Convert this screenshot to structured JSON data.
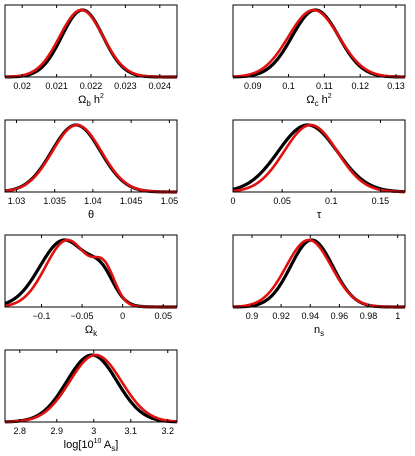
{
  "chart_data": [
    {
      "type": "line",
      "xlabel_main": "Ω",
      "xlabel_sub": "b",
      "xlabel_rest": " h",
      "xlabel_sup": "2",
      "xlim": [
        0.0195,
        0.0245
      ],
      "ticks": [
        0.02,
        0.021,
        0.022,
        0.023,
        0.024
      ],
      "tick_labels": [
        "0.02",
        "0.021",
        "0.022",
        "0.023",
        "0.024"
      ],
      "series": [
        {
          "color": "#000000",
          "mean": 0.02175,
          "sd": 0.0006,
          "bump_a": 0,
          "bump_mu": 0,
          "bump_sd": 1
        },
        {
          "color": "#e01010",
          "mean": 0.02172,
          "sd": 0.00063,
          "bump_a": 0,
          "bump_mu": 0,
          "bump_sd": 1
        }
      ]
    },
    {
      "type": "line",
      "xlabel_main": "Ω",
      "xlabel_sub": "c",
      "xlabel_rest": " h",
      "xlabel_sup": "2",
      "xlim": [
        0.0845,
        0.1325
      ],
      "ticks": [
        0.09,
        0.1,
        0.11,
        0.12,
        0.13
      ],
      "tick_labels": [
        "0.09",
        "0.1",
        "0.11",
        "0.12",
        "0.13"
      ],
      "series": [
        {
          "color": "#000000",
          "mean": 0.1075,
          "sd": 0.0065,
          "bump_a": 0,
          "bump_mu": 0,
          "bump_sd": 1
        },
        {
          "color": "#e01010",
          "mean": 0.107,
          "sd": 0.007,
          "bump_a": 0,
          "bump_mu": 0,
          "bump_sd": 1
        }
      ]
    },
    {
      "type": "line",
      "xlabel_main": "θ",
      "xlabel_sub": "",
      "xlabel_rest": "",
      "xlabel_sup": "",
      "xlim": [
        1.0285,
        1.051
      ],
      "ticks": [
        1.03,
        1.035,
        1.04,
        1.045,
        1.05
      ],
      "tick_labels": [
        "1.03",
        "1.035",
        "1.04",
        "1.045",
        "1.05"
      ],
      "series": [
        {
          "color": "#000000",
          "mean": 1.0378,
          "sd": 0.0032,
          "bump_a": 0,
          "bump_mu": 0,
          "bump_sd": 1
        },
        {
          "color": "#e01010",
          "mean": 1.0379,
          "sd": 0.0032,
          "bump_a": 0,
          "bump_mu": 0,
          "bump_sd": 1
        }
      ]
    },
    {
      "type": "line",
      "xlabel_main": "τ",
      "xlabel_sub": "",
      "xlabel_rest": "",
      "xlabel_sup": "",
      "xlim": [
        0,
        0.175
      ],
      "ticks": [
        0,
        0.05,
        0.1,
        0.15
      ],
      "tick_labels": [
        "0",
        "0.05",
        "0.1",
        "0.15"
      ],
      "series": [
        {
          "color": "#000000",
          "mean": 0.076,
          "sd": 0.03,
          "bump_a": 0,
          "bump_mu": 0,
          "bump_sd": 1
        },
        {
          "color": "#e01010",
          "mean": 0.079,
          "sd": 0.027,
          "bump_a": 0,
          "bump_mu": 0,
          "bump_sd": 1
        }
      ]
    },
    {
      "type": "line",
      "xlabel_main": "Ω",
      "xlabel_sub": "k",
      "xlabel_rest": "",
      "xlabel_sup": "",
      "xlim": [
        -0.145,
        0.067
      ],
      "ticks": [
        -0.1,
        -0.05,
        0,
        0.05
      ],
      "tick_labels": [
        "−0.1",
        "−0.05",
        "0",
        "0.05"
      ],
      "series": [
        {
          "color": "#000000",
          "mean": -0.072,
          "sd": 0.03,
          "bump_a": 0.35,
          "bump_mu": -0.025,
          "bump_sd": 0.015
        },
        {
          "color": "#e01010",
          "mean": -0.068,
          "sd": 0.027,
          "bump_a": 0.45,
          "bump_mu": -0.022,
          "bump_sd": 0.013
        }
      ]
    },
    {
      "type": "line",
      "xlabel_main": "n",
      "xlabel_sub": "s",
      "xlabel_rest": "",
      "xlabel_sup": "",
      "xlim": [
        0.887,
        1.005
      ],
      "ticks": [
        0.9,
        0.92,
        0.94,
        0.96,
        0.98,
        1
      ],
      "tick_labels": [
        "0.9",
        "0.92",
        "0.94",
        "0.96",
        "0.98",
        "1"
      ],
      "series": [
        {
          "color": "#000000",
          "mean": 0.941,
          "sd": 0.0145,
          "bump_a": 0,
          "bump_mu": 0,
          "bump_sd": 1
        },
        {
          "color": "#e01010",
          "mean": 0.939,
          "sd": 0.0155,
          "bump_a": 0,
          "bump_mu": 0,
          "bump_sd": 1
        }
      ]
    },
    {
      "type": "line",
      "xlabel_main": "log[10",
      "xlabel_sub": "",
      "xlabel_rest": " A",
      "xlabel_sup": "10",
      "xlabel_sub2": "s",
      "xlabel_end": "]",
      "xlim": [
        2.76,
        3.225
      ],
      "ticks": [
        2.8,
        2.9,
        3,
        3.1,
        3.2
      ],
      "tick_labels": [
        "2.8",
        "2.9",
        "3",
        "3.1",
        "3.2"
      ],
      "series": [
        {
          "color": "#000000",
          "mean": 2.995,
          "sd": 0.068,
          "bump_a": 0,
          "bump_mu": 0,
          "bump_sd": 1
        },
        {
          "color": "#e01010",
          "mean": 3.005,
          "sd": 0.07,
          "bump_a": 0,
          "bump_mu": 0,
          "bump_sd": 1
        }
      ]
    }
  ]
}
